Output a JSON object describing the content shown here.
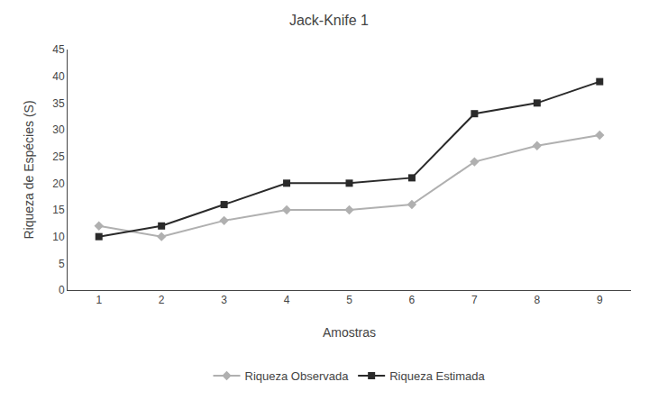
{
  "chart_data": {
    "type": "line",
    "title": "Jack-Knife 1",
    "xlabel": "Amostras",
    "ylabel": "Riqueza de Espécies (S)",
    "x": [
      1,
      2,
      3,
      4,
      5,
      6,
      7,
      8,
      9
    ],
    "series": [
      {
        "name": "Riqueza Observada",
        "color": "#b0b0b0",
        "marker": "diamond",
        "values": [
          12,
          10,
          13,
          15,
          15,
          16,
          24,
          27,
          29
        ]
      },
      {
        "name": "Riqueza Estimada",
        "color": "#2a2a2a",
        "marker": "square",
        "values": [
          10,
          12,
          16,
          20,
          20,
          21,
          33,
          35,
          39
        ]
      }
    ],
    "xlim": [
      0.5,
      9.5
    ],
    "xticks": [
      1,
      2,
      3,
      4,
      5,
      6,
      7,
      8,
      9
    ],
    "ylim": [
      0,
      45
    ],
    "yticks": [
      0,
      5,
      10,
      15,
      20,
      25,
      30,
      35,
      40,
      45
    ],
    "grid": false,
    "legend": "bottom"
  }
}
